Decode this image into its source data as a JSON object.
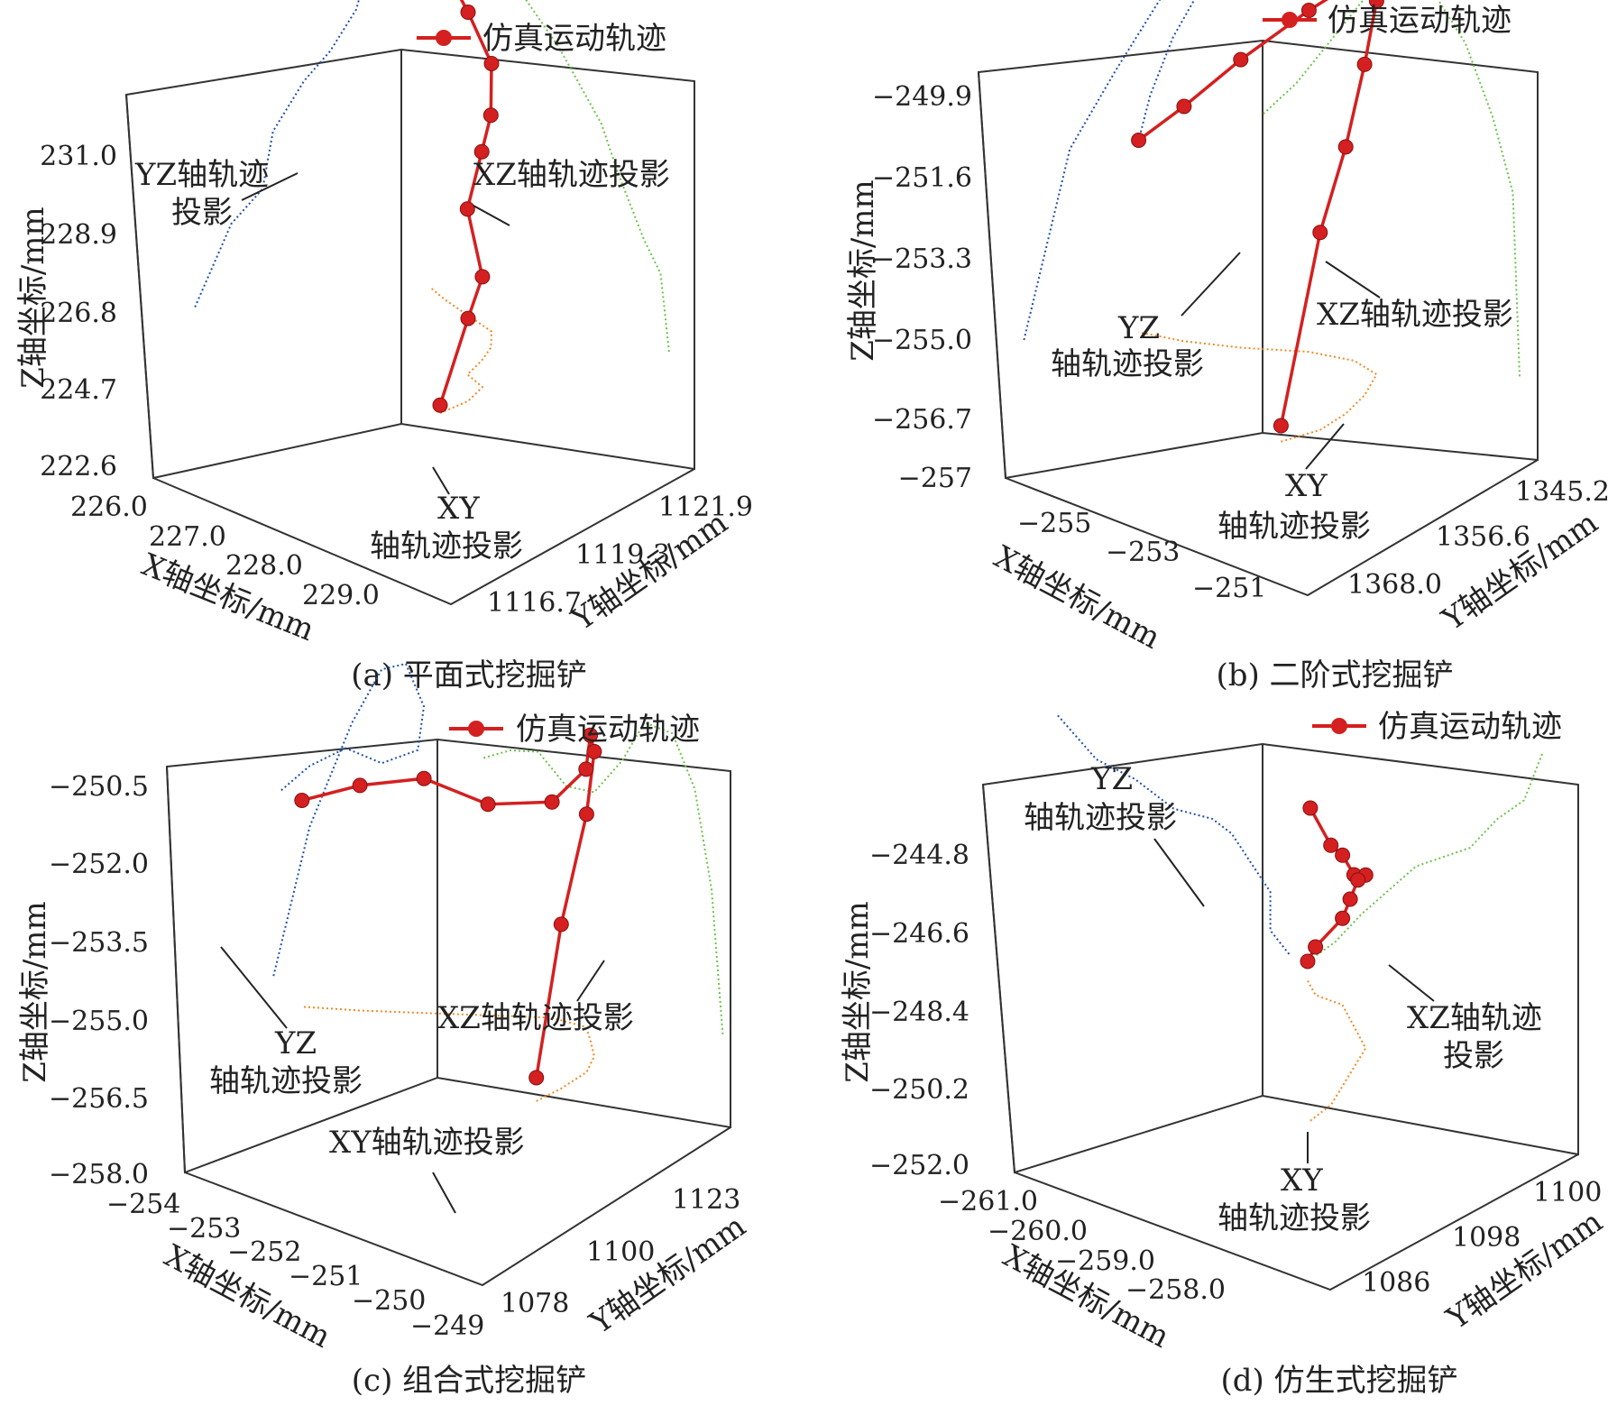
{
  "colors": {
    "trajectory": "#d42020",
    "yz_projection": "#1f4fa8",
    "xz_projection": "#6cc24a",
    "xy_projection": "#f08a24",
    "axis": "#333333"
  },
  "legend_label": "仿真运动轨迹",
  "chart_data": [
    {
      "type": "line",
      "panel": "a",
      "caption": "(a) 平面式挖掘铲",
      "legend": "仿真运动轨迹",
      "xlabel": "X轴坐标/mm",
      "ylabel": "Y轴坐标/mm",
      "zlabel": "Z轴坐标/mm",
      "x_ticks": [
        "226.0",
        "227.0",
        "228.0",
        "229.0"
      ],
      "y_ticks": [
        "1121.9",
        "1119.3",
        "1116.7"
      ],
      "z_ticks": [
        "231.0",
        "228.9",
        "226.8",
        "224.7",
        "222.6"
      ],
      "annotations": {
        "yz": [
          "YZ轴轨迹",
          "投影"
        ],
        "xz": [
          "XZ轴轨迹投影"
        ],
        "xy": [
          "XY",
          "轴轨迹投影"
        ]
      },
      "series": [
        {
          "name": "仿真运动轨迹",
          "x": [
            228.9,
            228.8,
            228.6,
            228.3,
            228.1,
            227.9,
            227.6,
            227.2,
            226.8,
            226.5
          ],
          "y": [
            1117.5,
            1118.2,
            1118.8,
            1119.0,
            1119.6,
            1120.1,
            1120.6,
            1120.8,
            1121.0,
            1121.2
          ],
          "z": [
            222.8,
            224.7,
            225.4,
            226.8,
            227.9,
            228.5,
            229.4,
            230.3,
            231.0,
            231.1
          ]
        }
      ]
    },
    {
      "type": "line",
      "panel": "b",
      "caption": "(b) 二阶式挖掘铲",
      "legend": "仿真运动轨迹",
      "xlabel": "X轴坐标/mm",
      "ylabel": "Y轴坐标/mm",
      "zlabel": "Z轴坐标/mm",
      "x_ticks": [
        "−255",
        "−253",
        "−251"
      ],
      "y_ticks": [
        "1345.2",
        "1356.6",
        "1368.0"
      ],
      "z_ticks": [
        "−249.9",
        "−251.6",
        "−253.3",
        "−255.0",
        "−256.7",
        "−257"
      ],
      "annotations": {
        "yz": [
          "YZ",
          "轴轨迹投影"
        ],
        "xz": [
          "XZ轴轨迹投影"
        ],
        "xy": [
          "XY",
          "轴轨迹投影"
        ]
      },
      "series": [
        {
          "name": "仿真运动轨迹",
          "x": [
            -251.2,
            -251.3,
            -251.6,
            -252.0,
            -252.5,
            -253.0,
            -253.5,
            -254.0,
            -254.5,
            -255.0
          ],
          "y": [
            1366.0,
            1362.0,
            1358.0,
            1354.0,
            1350.0,
            1349.0,
            1350.0,
            1353.0,
            1355.0,
            1356.0
          ],
          "z": [
            -256.7,
            -253.3,
            -252.0,
            -250.8,
            -250.0,
            -249.9,
            -250.6,
            -251.6,
            -252.6,
            -253.4
          ]
        }
      ]
    },
    {
      "type": "line",
      "panel": "c",
      "caption": "(c) 组合式挖掘铲",
      "legend": "仿真运动轨迹",
      "xlabel": "X轴坐标/mm",
      "ylabel": "Y轴坐标/mm",
      "zlabel": "Z轴坐标/mm",
      "x_ticks": [
        "−254",
        "−253",
        "−252",
        "−251",
        "−250",
        "−249"
      ],
      "y_ticks": [
        "1123",
        "1100",
        "1078"
      ],
      "z_ticks": [
        "−250.5",
        "−252.0",
        "−253.5",
        "−255.0",
        "−256.5",
        "−258.0"
      ],
      "annotations": {
        "yz": [
          "YZ",
          "轴轨迹投影"
        ],
        "xz": [
          "XZ轴轨迹投影"
        ],
        "xy": [
          "XY轴轨迹投影"
        ]
      },
      "series": [
        {
          "name": "仿真运动轨迹",
          "x": [
            -249.3,
            -249.5,
            -249.8,
            -250.2,
            -250.7,
            -251.1,
            -251.6,
            -252.1,
            -252.6,
            -253.1,
            -253.6
          ],
          "y": [
            1092,
            1098,
            1105,
            1110,
            1114,
            1117,
            1116,
            1110,
            1104,
            1098,
            1093
          ],
          "z": [
            -257.5,
            -254.5,
            -252.5,
            -251.5,
            -251.5,
            -252.5,
            -253.4,
            -253.5,
            -253.0,
            -253.2,
            -253.6
          ]
        }
      ]
    },
    {
      "type": "line",
      "panel": "d",
      "caption": "(d) 仿生式挖掘铲",
      "legend": "仿真运动轨迹",
      "xlabel": "X轴坐标/mm",
      "ylabel": "Y轴坐标/mm",
      "zlabel": "Z轴坐标/mm",
      "x_ticks": [
        "−261.0",
        "−260.0",
        "−259.0",
        "−258.0"
      ],
      "y_ticks": [
        "1100",
        "1098",
        "1086"
      ],
      "z_ticks": [
        "−244.8",
        "−246.6",
        "−248.4",
        "−250.2",
        "−252.0"
      ],
      "annotations": {
        "yz": [
          "YZ",
          "轴轨迹投影"
        ],
        "xz": [
          "XZ轴轨迹",
          "投影"
        ],
        "xy": [
          "XY",
          "轴轨迹投影"
        ]
      },
      "series": [
        {
          "name": "仿真运动轨迹",
          "x": [
            -258.2,
            -258.4,
            -258.7,
            -259.0,
            -259.3,
            -259.6,
            -259.9,
            -260.2,
            -260.5,
            -260.8
          ],
          "y": [
            1088,
            1090,
            1092,
            1094,
            1096,
            1097,
            1098,
            1099,
            1099,
            1100
          ],
          "z": [
            -245.5,
            -246.6,
            -247.2,
            -248.0,
            -248.4,
            -248.8,
            -249.5,
            -250.2,
            -251.0,
            -251.6
          ]
        }
      ]
    }
  ]
}
